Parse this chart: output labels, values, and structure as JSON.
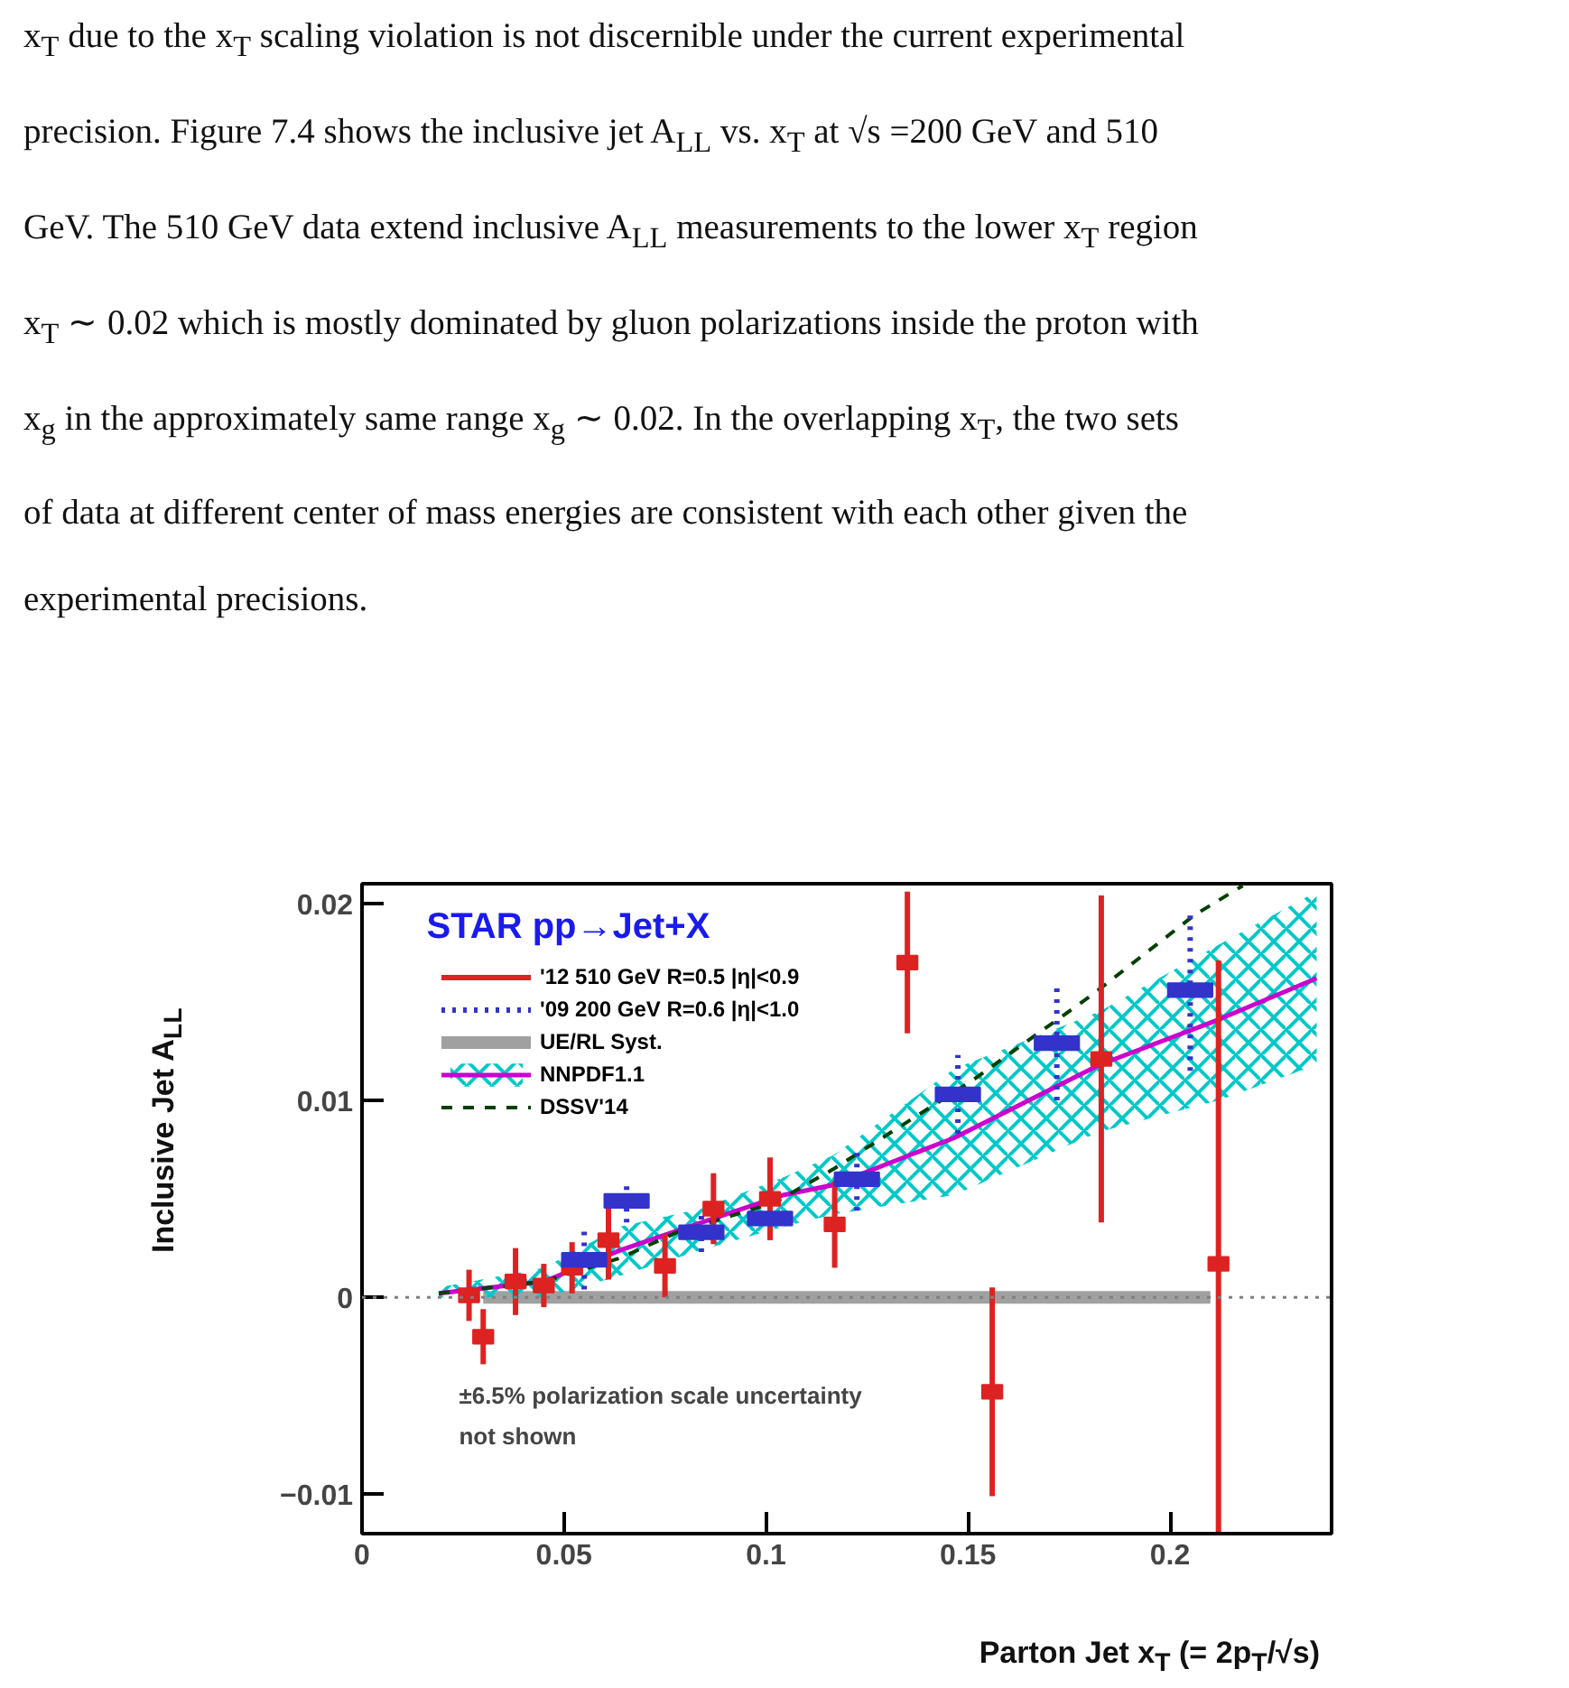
{
  "chart_data": {
    "type": "scatter",
    "title": "STAR pp→Jet+X",
    "xlabel": "Parton Jet x$_{T}$ (= 2p$_{T}$/√s)",
    "ylabel": "Inclusive Jet A$_{LL}$",
    "annotations": [
      "x$_{T}$ due to the x$_{T}$ scaling violation is not discernible under the current experimental",
      "precision. Figure 7.4 shows the inclusive jet A$_{LL}$ vs. x$_{T}$ at √s =200 GeV and 510",
      "GeV. The 510 GeV data extend inclusive A$_{LL}$ measurements to the lower x$_{T}$ region",
      "x$_{T}$ ∼ 0.02 which is mostly dominated by gluon polarizations inside the proton with",
      "x$_{g}$ in the approximately same range x$_{g}$ ∼ 0.02. In the overlapping x$_{T}$, the two sets",
      "of data at different center of mass energies are consistent with each other given the",
      "experimental precisions.",
      "±6.5% polarization scale uncertainty\nnot shown"
    ],
    "xlim": [
      0,
      0.24
    ],
    "ylim": [
      -0.012,
      0.021
    ],
    "xticks": [
      0,
      0.05,
      0.1,
      0.15,
      0.2
    ],
    "yticks": [
      {
        "value": -0.01,
        "label": "−0.01"
      },
      0,
      0.01,
      0.02
    ],
    "grid": false,
    "legend": "top left",
    "marker": "square",
    "ref_lines": [
      {
        "axis": "y",
        "value": 0,
        "color": "#808080",
        "line_style": "dotted"
      }
    ],
    "series": [
      {
        "name": "UE/RL Syst.",
        "type": "line",
        "marker": "none",
        "color": "#a0a0a0",
        "x": [
          0.03,
          0.21
        ],
        "values": [
          0,
          0
        ]
      },
      {
        "name": "NNPDF1.1",
        "type": "line",
        "marker": "none",
        "color": "#cc00cc",
        "x": [
          0.019,
          0.045,
          0.064,
          0.084,
          0.1045,
          0.1166,
          0.1466,
          0.1825,
          0.212,
          0.2363
        ],
        "values": [
          0.0002,
          0.0008,
          0.0024,
          0.0038,
          0.0052,
          0.0057,
          0.0081,
          0.0118,
          0.0141,
          0.0162
        ],
        "lower": [
          0,
          0,
          0.0011,
          0.0024,
          0.0036,
          0.0042,
          0.0052,
          0.0084,
          0.01,
          0.0118
        ],
        "upper": [
          0.0005,
          0.0015,
          0.0036,
          0.0045,
          0.0061,
          0.0072,
          0.0116,
          0.0145,
          0.0179,
          0.0206
        ]
      },
      {
        "name": "DSSV'14",
        "type": "line",
        "marker": "none",
        "line_style": "dashed",
        "color": "#004000",
        "x": [
          0.019,
          0.045,
          0.064,
          0.078,
          0.102,
          0.1166,
          0.151,
          0.181,
          0.206,
          0.218
        ],
        "values": [
          0.0002,
          0.0008,
          0.002,
          0.0033,
          0.0048,
          0.0065,
          0.011,
          0.0154,
          0.0194,
          0.0209
        ]
      },
      {
        "name": "'12 510 GeV R=0.5 |η|<0.9",
        "line_style": "solid",
        "color": "#dd2222",
        "x": [
          0.0265,
          0.03,
          0.038,
          0.045,
          0.052,
          0.061,
          0.075,
          0.087,
          0.101,
          0.117,
          0.135,
          0.156,
          0.183,
          0.212
        ],
        "values": [
          0.0001,
          -0.002,
          0.0008,
          0.0006,
          0.0015,
          0.0029,
          0.0016,
          0.0045,
          0.005,
          0.0037,
          0.017,
          -0.0048,
          0.0121,
          0.0017
        ],
        "errors": [
          0.0013,
          0.0014,
          0.0017,
          0.0011,
          0.0013,
          0.002,
          0.0016,
          0.0018,
          0.0021,
          0.0022,
          0.0036,
          0.0053,
          0.0083,
          [
            -0.012,
            0.0171
          ]
        ]
      },
      {
        "name": "'09 200 GeV R=0.6 |η|<1.0",
        "line_style": "dotted",
        "color": "#3333cc",
        "x": [
          0.055,
          0.0655,
          0.084,
          0.101,
          0.1225,
          0.1475,
          0.172,
          0.205
        ],
        "values": [
          0.0019,
          0.0049,
          0.0033,
          0.004,
          0.006,
          0.0103,
          0.0129,
          0.0156
        ],
        "errors": [
          0.0015,
          0.0011,
          0.001,
          null,
          0.0016,
          0.002,
          0.0029,
          0.0041
        ]
      }
    ]
  }
}
